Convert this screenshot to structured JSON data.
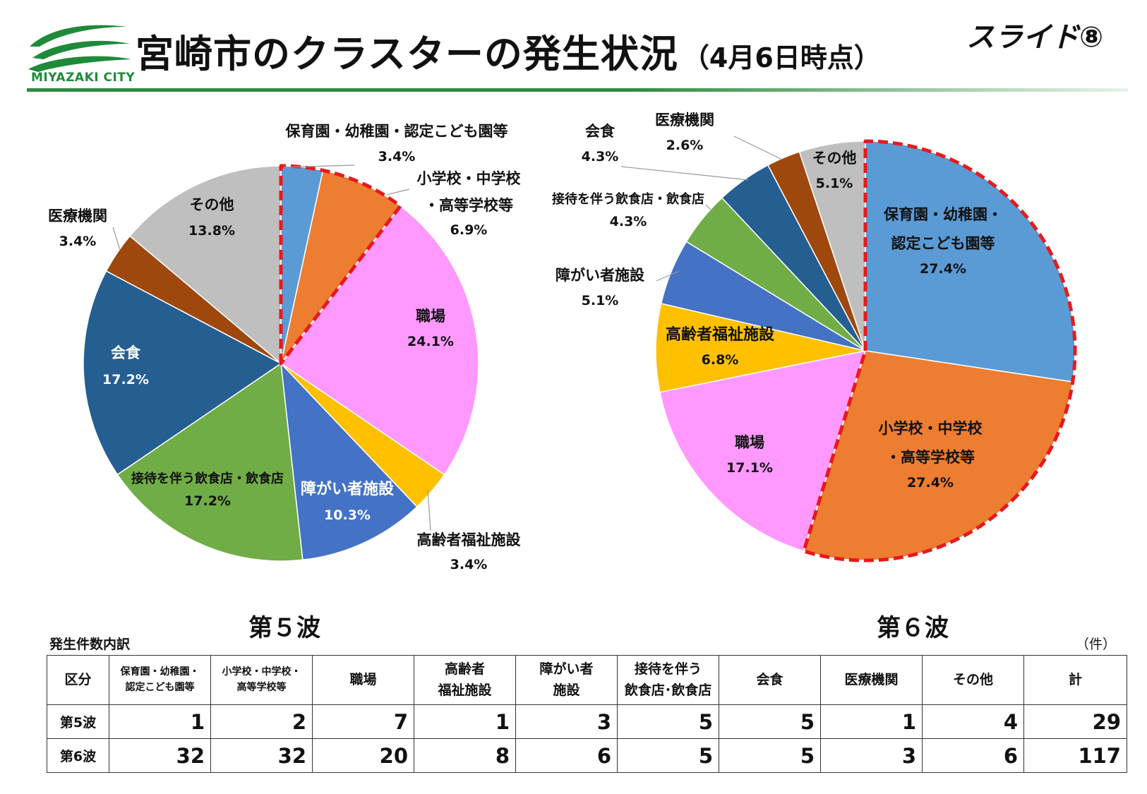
{
  "header": {
    "logo_text": "MIYAZAKI CITY",
    "title": "宮崎市のクラスターの発生状況",
    "subtitle": "（4月6日時点）",
    "slide_label": "スライド⑧"
  },
  "colors": {
    "nursery": "#5b9bd5",
    "school": "#ed7d31",
    "workplace": "#ff99ff",
    "elderly": "#ffc000",
    "disability": "#4472c4",
    "restaurant": "#70ad47",
    "dining": "#255e91",
    "medical": "#9e480e",
    "other": "#bfbfbf",
    "highlight": "#e8191c",
    "logo_green": "#1f8a3a"
  },
  "chart_data": [
    {
      "type": "pie",
      "title": "第５波",
      "start_angle_deg": 0,
      "direction": "clockwise",
      "highlighted_slices": [
        0,
        1
      ],
      "slices": [
        {
          "key": "nursery",
          "label": "保育園・幼稚園・認定こども園等",
          "percent": 3.4,
          "pct_text": "3.4%"
        },
        {
          "key": "school",
          "label": "小学校・中学校・高等学校等",
          "percent": 6.9,
          "pct_text": "6.9%"
        },
        {
          "key": "workplace",
          "label": "職場",
          "percent": 24.1,
          "pct_text": "24.1%"
        },
        {
          "key": "elderly",
          "label": "高齢者福祉施設",
          "percent": 3.4,
          "pct_text": "3.4%"
        },
        {
          "key": "disability",
          "label": "障がい者施設",
          "percent": 10.3,
          "pct_text": "10.3%"
        },
        {
          "key": "restaurant",
          "label": "接待を伴う飲食店・飲食店",
          "percent": 17.2,
          "pct_text": "17.2%"
        },
        {
          "key": "dining",
          "label": "会食",
          "percent": 17.2,
          "pct_text": "17.2%"
        },
        {
          "key": "medical",
          "label": "医療機関",
          "percent": 3.4,
          "pct_text": "3.4%"
        },
        {
          "key": "other",
          "label": "その他",
          "percent": 13.8,
          "pct_text": "13.8%"
        }
      ]
    },
    {
      "type": "pie",
      "title": "第６波",
      "start_angle_deg": 0,
      "direction": "clockwise",
      "highlighted_slices": [
        0,
        1
      ],
      "slices": [
        {
          "key": "nursery",
          "label": "保育園・幼稚園・認定こども園等",
          "percent": 27.4,
          "pct_text": "27.4%"
        },
        {
          "key": "school",
          "label": "小学校・中学校・高等学校等",
          "percent": 27.4,
          "pct_text": "27.4%"
        },
        {
          "key": "workplace",
          "label": "職場",
          "percent": 17.1,
          "pct_text": "17.1%"
        },
        {
          "key": "elderly",
          "label": "高齢者福祉施設",
          "percent": 6.8,
          "pct_text": "6.8%"
        },
        {
          "key": "disability",
          "label": "障がい者施設",
          "percent": 5.1,
          "pct_text": "5.1%"
        },
        {
          "key": "restaurant",
          "label": "接待を伴う飲食店・飲食店",
          "percent": 4.3,
          "pct_text": "4.3%"
        },
        {
          "key": "dining",
          "label": "会食",
          "percent": 4.3,
          "pct_text": "4.3%"
        },
        {
          "key": "medical",
          "label": "医療機関",
          "percent": 2.6,
          "pct_text": "2.6%"
        },
        {
          "key": "other",
          "label": "その他",
          "percent": 5.1,
          "pct_text": "5.1%"
        }
      ]
    }
  ],
  "table": {
    "caption": "発生件数内訳",
    "unit": "（件）",
    "headers": [
      {
        "lines": [
          "区分"
        ],
        "small": false
      },
      {
        "lines": [
          "保育園・幼稚園・",
          "認定こども園等"
        ],
        "small": true
      },
      {
        "lines": [
          "小学校・中学校・",
          "高等学校等"
        ],
        "small": true
      },
      {
        "lines": [
          "職場"
        ],
        "small": false
      },
      {
        "lines": [
          "高齢者",
          "福祉施設"
        ],
        "small": false
      },
      {
        "lines": [
          "障がい者",
          "施設"
        ],
        "small": false
      },
      {
        "lines": [
          "接待を伴う",
          "飲食店･飲食店"
        ],
        "small": false
      },
      {
        "lines": [
          "会食"
        ],
        "small": false
      },
      {
        "lines": [
          "医療機関"
        ],
        "small": false
      },
      {
        "lines": [
          "その他"
        ],
        "small": false
      },
      {
        "lines": [
          "計"
        ],
        "small": false
      }
    ],
    "rows": [
      {
        "label": "第5波",
        "values": [
          "1",
          "2",
          "7",
          "1",
          "3",
          "5",
          "5",
          "1",
          "4",
          "29"
        ]
      },
      {
        "label": "第6波",
        "values": [
          "32",
          "32",
          "20",
          "8",
          "6",
          "5",
          "5",
          "3",
          "6",
          "117"
        ]
      }
    ]
  }
}
